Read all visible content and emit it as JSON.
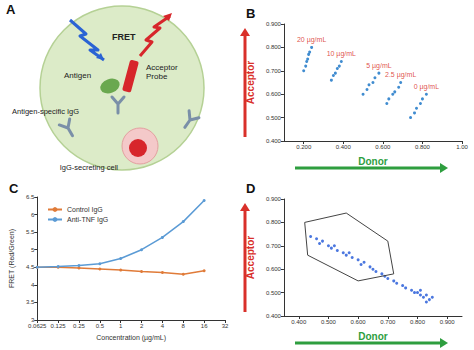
{
  "diagram": {
    "title": "A",
    "labels": {
      "fret": "FRET",
      "antigen": "Antigen",
      "acceptor_probe": "Acceptor Probe",
      "igg": "Antigen-specific IgG",
      "cell": "IgG-secreting cell"
    }
  },
  "chart_data": [
    {
      "type": "scatter",
      "title": "B",
      "xlabel": "Donor",
      "ylabel": "Acceptor",
      "xlim": [
        0.1,
        1.0
      ],
      "xticks": [
        {
          "value": 0.2,
          "label": "0.200"
        },
        {
          "value": 0.4,
          "label": "0.400"
        },
        {
          "value": 0.6,
          "label": "0.600"
        },
        {
          "value": 0.8,
          "label": "0.800"
        },
        {
          "value": 1.0,
          "label": "1.00"
        }
      ],
      "ylim": [
        0.4,
        0.9
      ],
      "yticks": [
        {
          "value": 0.4,
          "label": "0.400"
        },
        {
          "value": 0.5,
          "label": "0.500"
        },
        {
          "value": 0.6,
          "label": "0.600"
        },
        {
          "value": 0.7,
          "label": "0.700"
        },
        {
          "value": 0.8,
          "label": "0.800"
        },
        {
          "value": 0.9,
          "label": "0.900"
        }
      ],
      "grid": false,
      "series": [
        {
          "name": "20 µg/mL",
          "color": "#1f78c8",
          "values": [
            [
              0.2,
              0.7
            ],
            [
              0.21,
              0.72
            ],
            [
              0.215,
              0.74
            ],
            [
              0.22,
              0.75
            ],
            [
              0.225,
              0.77
            ],
            [
              0.23,
              0.78
            ],
            [
              0.24,
              0.8
            ]
          ]
        },
        {
          "name": "10 µg/mL",
          "color": "#1f78c8",
          "values": [
            [
              0.34,
              0.66
            ],
            [
              0.35,
              0.68
            ],
            [
              0.36,
              0.69
            ],
            [
              0.37,
              0.71
            ],
            [
              0.38,
              0.72
            ],
            [
              0.39,
              0.74
            ]
          ]
        },
        {
          "name": "5 µg/mL",
          "color": "#1f78c8",
          "values": [
            [
              0.5,
              0.6
            ],
            [
              0.52,
              0.62
            ],
            [
              0.53,
              0.64
            ],
            [
              0.55,
              0.65
            ],
            [
              0.56,
              0.67
            ],
            [
              0.58,
              0.69
            ]
          ]
        },
        {
          "name": "2.5 µg/mL",
          "color": "#1f78c8",
          "values": [
            [
              0.62,
              0.56
            ],
            [
              0.63,
              0.58
            ],
            [
              0.65,
              0.6
            ],
            [
              0.66,
              0.61
            ],
            [
              0.68,
              0.63
            ],
            [
              0.69,
              0.65
            ]
          ]
        },
        {
          "name": "0 µg/mL",
          "color": "#1f78c8",
          "values": [
            [
              0.74,
              0.5
            ],
            [
              0.76,
              0.52
            ],
            [
              0.77,
              0.54
            ],
            [
              0.79,
              0.56
            ],
            [
              0.8,
              0.58
            ],
            [
              0.82,
              0.6
            ]
          ]
        }
      ]
    },
    {
      "type": "line",
      "title": "C",
      "xlabel": "Concentration (µg/mL)",
      "ylabel": "FRET (Red/Green)",
      "log": "x",
      "x": [
        0.0625,
        0.125,
        0.25,
        0.5,
        1,
        2,
        4,
        8,
        16
      ],
      "xlim": [
        0.0625,
        32
      ],
      "xticks": [
        0.0625,
        0.125,
        0.25,
        0.5,
        1,
        2,
        4,
        8,
        16,
        32
      ],
      "ylim": [
        3,
        6.5
      ],
      "yticks": [
        3,
        3.5,
        4,
        4.5,
        5,
        5.5,
        6,
        6.5
      ],
      "grid": false,
      "legend": "top-left",
      "marker": "circle",
      "series": [
        {
          "name": "Control IgG",
          "color": "#e07b39",
          "values": [
            4.5,
            4.5,
            4.48,
            4.45,
            4.42,
            4.38,
            4.35,
            4.3,
            4.4
          ]
        },
        {
          "name": "Anti-TNF IgG",
          "color": "#5b9bd5",
          "values": [
            4.5,
            4.52,
            4.55,
            4.6,
            4.75,
            5.0,
            5.35,
            5.8,
            6.4
          ]
        }
      ]
    },
    {
      "type": "scatter",
      "title": "D",
      "xlabel": "Donor",
      "ylabel": "Acceptor",
      "xlim": [
        0.35,
        0.95
      ],
      "xticks": [
        {
          "value": 0.4,
          "label": "0.400"
        },
        {
          "value": 0.5,
          "label": "0.500"
        },
        {
          "value": 0.6,
          "label": "0.600"
        },
        {
          "value": 0.7,
          "label": "0.700"
        },
        {
          "value": 0.8,
          "label": "0.800"
        },
        {
          "value": 0.9,
          "label": "0.900"
        }
      ],
      "ylim": [
        0.4,
        0.9
      ],
      "yticks": [
        {
          "value": 0.4,
          "label": "0.400"
        },
        {
          "value": 0.5,
          "label": "0.500"
        },
        {
          "value": 0.6,
          "label": "0.600"
        },
        {
          "value": 0.7,
          "label": "0.700"
        },
        {
          "value": 0.8,
          "label": "0.800"
        },
        {
          "value": 0.9,
          "label": "0.900"
        }
      ],
      "grid": false,
      "gate": [
        [
          0.42,
          0.8
        ],
        [
          0.56,
          0.84
        ],
        [
          0.7,
          0.72
        ],
        [
          0.72,
          0.58
        ],
        [
          0.6,
          0.55
        ],
        [
          0.43,
          0.66
        ]
      ],
      "series": [
        {
          "color": "#2b5fd9",
          "values": [
            [
              0.44,
              0.74
            ],
            [
              0.46,
              0.73
            ],
            [
              0.47,
              0.71
            ],
            [
              0.48,
              0.72
            ],
            [
              0.5,
              0.7
            ],
            [
              0.51,
              0.69
            ],
            [
              0.52,
              0.7
            ],
            [
              0.53,
              0.68
            ],
            [
              0.55,
              0.67
            ],
            [
              0.56,
              0.66
            ],
            [
              0.57,
              0.67
            ],
            [
              0.58,
              0.65
            ],
            [
              0.6,
              0.64
            ],
            [
              0.61,
              0.62
            ],
            [
              0.62,
              0.63
            ],
            [
              0.64,
              0.61
            ],
            [
              0.65,
              0.6
            ],
            [
              0.66,
              0.59
            ],
            [
              0.68,
              0.58
            ],
            [
              0.69,
              0.57
            ],
            [
              0.7,
              0.56
            ],
            [
              0.72,
              0.55
            ],
            [
              0.73,
              0.54
            ],
            [
              0.75,
              0.53
            ],
            [
              0.76,
              0.52
            ],
            [
              0.78,
              0.51
            ],
            [
              0.79,
              0.5
            ],
            [
              0.8,
              0.5
            ],
            [
              0.81,
              0.49
            ],
            [
              0.82,
              0.48
            ],
            [
              0.83,
              0.49
            ],
            [
              0.84,
              0.47
            ],
            [
              0.85,
              0.48
            ],
            [
              0.83,
              0.46
            ],
            [
              0.81,
              0.51
            ]
          ]
        }
      ]
    }
  ]
}
